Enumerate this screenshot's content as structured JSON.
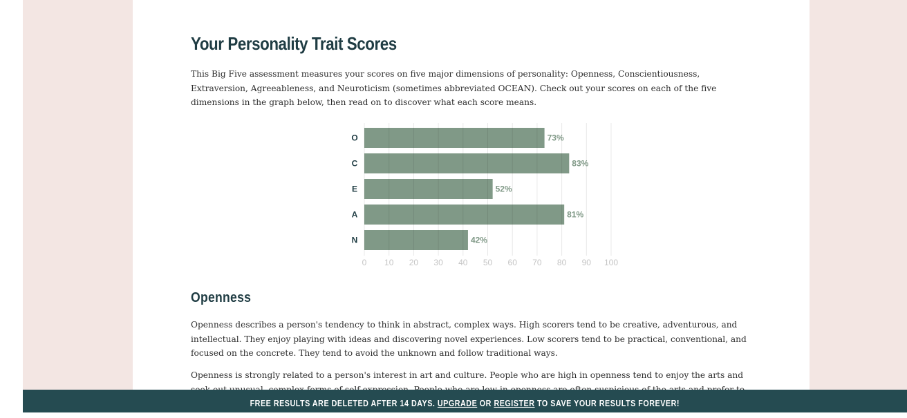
{
  "page": {
    "title": "Your Personality Trait Scores",
    "intro": "This Big Five assessment measures your scores on five major dimensions of personality: Openness, Conscientiousness, Extraversion, Agreeableness, and Neuroticism (sometimes abbreviated OCEAN). Check out your scores on each of the five dimensions in the graph below, then read on to discover what each score means."
  },
  "openness": {
    "heading": "Openness",
    "p1": "Openness describes a person's tendency to think in abstract, complex ways. High scorers tend to be creative, adventurous, and intellectual. They enjoy playing with ideas and discovering novel experiences. Low scorers tend to be practical, conventional, and focused on the concrete. They tend to avoid the unknown and follow traditional ways.",
    "p2": "Openness is strongly related to a person's interest in art and culture. People who are high in openness tend to enjoy the arts and seek out unusual, complex forms of self-expression. People who are low in openness are often suspicious of the arts and prefer to focus on more practical pursuits."
  },
  "banner": {
    "text_before": "FREE RESULTS ARE DELETED AFTER 14 DAYS.",
    "upgrade": "UPGRADE",
    "or": "OR",
    "register": "REGISTER",
    "text_after": "TO SAVE YOUR RESULTS FOREVER!"
  },
  "colors": {
    "bar": "#809987",
    "heading": "#1f3c43",
    "banner": "#254b51",
    "page_bg": "#f3e6e3"
  },
  "chart_data": {
    "type": "bar",
    "orientation": "horizontal",
    "categories": [
      "O",
      "C",
      "E",
      "A",
      "N"
    ],
    "values": [
      73,
      83,
      52,
      81,
      42
    ],
    "value_labels": [
      "73%",
      "83%",
      "52%",
      "81%",
      "42%"
    ],
    "xticks": [
      "0",
      "10",
      "20",
      "30",
      "40",
      "50",
      "60",
      "70",
      "80",
      "90",
      "100"
    ],
    "xlim": [
      0,
      100
    ],
    "grid": true,
    "title": "",
    "xlabel": "",
    "ylabel": ""
  }
}
